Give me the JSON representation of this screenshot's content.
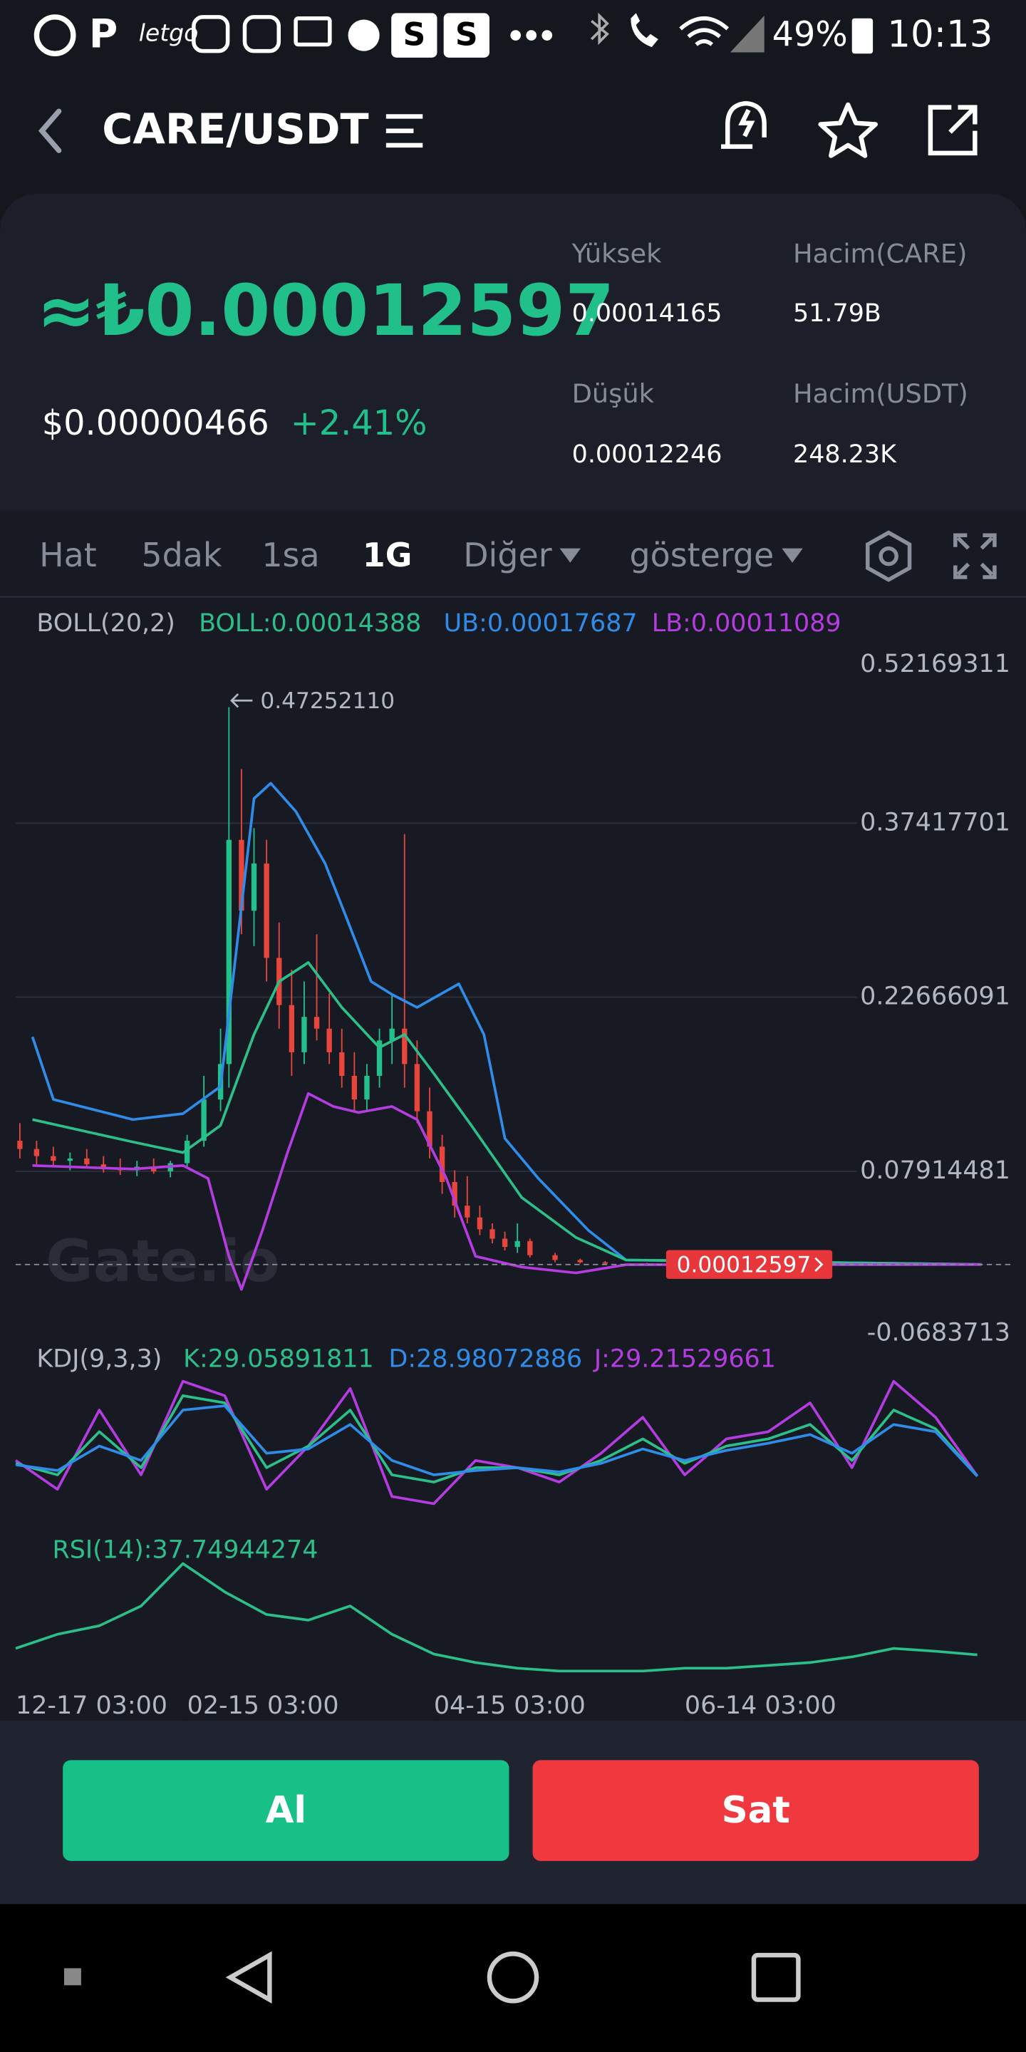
{
  "status_bar": {
    "app_icons": [
      "P",
      "letgo",
      "S",
      "S"
    ],
    "battery": "49%",
    "time": "10:13"
  },
  "header": {
    "pair": "CARE/USDT"
  },
  "ticker": {
    "price": "≈₺0.00012597",
    "usd_price": "$0.00000466",
    "change": "+2.41%",
    "stats": [
      {
        "label": "Yüksek",
        "value": "0.00014165"
      },
      {
        "label": "Hacim(CARE)",
        "value": "51.79B"
      },
      {
        "label": "Düşük",
        "value": "0.00012246"
      },
      {
        "label": "Hacim(USDT)",
        "value": "248.23K"
      }
    ]
  },
  "tabs": [
    "Hat",
    "5dak",
    "1sa",
    "1G",
    "Diğer",
    "gösterge"
  ],
  "active_tab": 3,
  "chart": {
    "watermark": "Gate.io",
    "boll_label": "BOLL(20,2)",
    "boll": "BOLL:0.00014388",
    "ub": "UB:0.00017687",
    "lb": "LB:0.00011089",
    "ylim": [
      -0.0683713,
      0.52169311
    ],
    "yticks": [
      0.52169311,
      0.37417701,
      0.22666091,
      0.07914481,
      -0.0683713
    ],
    "yticks_labels_note": null,
    "xlim": [
      19,
      250
    ],
    "xticks": [
      {
        "value": 0,
        "label": "12-17 03:00"
      },
      {
        "value": 60,
        "label": "02-15 03:00"
      },
      {
        "value": 119,
        "label": "04-15 03:00"
      },
      {
        "value": 179,
        "label": "06-14 03:00"
      }
    ],
    "max_point": {
      "x": 70,
      "value": 0.4725211,
      "label": "0.47252110"
    },
    "last_price": 0.00012597,
    "candles": {
      "up_color": "#22c08a",
      "down_color": "#e8453c",
      "x": [
        20,
        24,
        28,
        32,
        36,
        40,
        44,
        48,
        52,
        56,
        60,
        64,
        68,
        70,
        73,
        76,
        79,
        82,
        85,
        88,
        91,
        94,
        97,
        100,
        103,
        106,
        109,
        112,
        115,
        118,
        121,
        124,
        127,
        130,
        133,
        136,
        139,
        142,
        148,
        154,
        160,
        170
      ],
      "open": [
        0.105,
        0.098,
        0.092,
        0.088,
        0.09,
        0.085,
        0.082,
        0.08,
        0.083,
        0.079,
        0.086,
        0.105,
        0.14,
        0.17,
        0.36,
        0.3,
        0.34,
        0.26,
        0.22,
        0.18,
        0.21,
        0.2,
        0.18,
        0.16,
        0.14,
        0.16,
        0.19,
        0.2,
        0.17,
        0.13,
        0.1,
        0.07,
        0.05,
        0.04,
        0.03,
        0.022,
        0.015,
        0.02,
        0.008,
        0.004,
        0.002,
        0.001
      ],
      "high": [
        0.12,
        0.105,
        0.1,
        0.095,
        0.098,
        0.092,
        0.09,
        0.088,
        0.09,
        0.088,
        0.11,
        0.16,
        0.2,
        0.4725211,
        0.42,
        0.37,
        0.36,
        0.29,
        0.25,
        0.24,
        0.28,
        0.23,
        0.2,
        0.18,
        0.17,
        0.2,
        0.23,
        0.365,
        0.19,
        0.15,
        0.11,
        0.08,
        0.075,
        0.05,
        0.035,
        0.028,
        0.035,
        0.022,
        0.01,
        0.005,
        0.003,
        0.0015
      ],
      "low": [
        0.09,
        0.085,
        0.083,
        0.08,
        0.082,
        0.078,
        0.076,
        0.075,
        0.077,
        0.074,
        0.082,
        0.1,
        0.13,
        0.15,
        0.28,
        0.27,
        0.24,
        0.2,
        0.16,
        0.17,
        0.19,
        0.17,
        0.15,
        0.13,
        0.13,
        0.15,
        0.17,
        0.15,
        0.12,
        0.09,
        0.06,
        0.04,
        0.035,
        0.025,
        0.018,
        0.012,
        0.01,
        0.006,
        0.002,
        0.001,
        0.0003,
        0.0002
      ],
      "close": [
        0.098,
        0.092,
        0.088,
        0.09,
        0.085,
        0.082,
        0.08,
        0.083,
        0.079,
        0.086,
        0.105,
        0.14,
        0.17,
        0.36,
        0.3,
        0.34,
        0.26,
        0.22,
        0.18,
        0.21,
        0.2,
        0.18,
        0.16,
        0.14,
        0.16,
        0.19,
        0.2,
        0.17,
        0.13,
        0.1,
        0.07,
        0.05,
        0.04,
        0.03,
        0.022,
        0.015,
        0.02,
        0.008,
        0.004,
        0.002,
        0.001,
        0.0005
      ]
    },
    "bands": [
      {
        "color": "#2f8ce8",
        "x": [
          23,
          28,
          47,
          59,
          68,
          76,
          80,
          86,
          93,
          98,
          104,
          109,
          115,
          125,
          131,
          136,
          144,
          156,
          165,
          250
        ],
        "values": [
          0.193,
          0.14,
          0.123,
          0.128,
          0.151,
          0.395,
          0.408,
          0.384,
          0.34,
          0.295,
          0.24,
          0.229,
          0.218,
          0.238,
          0.195,
          0.107,
          0.073,
          0.029,
          0.004,
          0.00017687
        ]
      },
      {
        "color": "#2cbf8a",
        "x": [
          23,
          47,
          59,
          68,
          76,
          82,
          89,
          97,
          106,
          112,
          119,
          128,
          140,
          153,
          165,
          250
        ],
        "values": [
          0.123,
          0.104,
          0.095,
          0.118,
          0.195,
          0.24,
          0.256,
          0.218,
          0.184,
          0.195,
          0.162,
          0.118,
          0.057,
          0.023,
          0.004,
          0.00014388
        ]
      },
      {
        "color": "#b43ce0",
        "x": [
          23,
          47,
          59,
          65,
          70,
          73,
          78,
          84,
          89,
          95,
          101,
          109,
          115,
          122,
          129,
          140,
          153,
          165,
          250
        ],
        "values": [
          0.084,
          0.081,
          0.084,
          0.073,
          0.007,
          -0.021,
          0.029,
          0.095,
          0.145,
          0.134,
          0.129,
          0.134,
          0.123,
          0.073,
          0.007,
          -0.002,
          -0.007,
          0.0,
          0.00011089
        ]
      }
    ],
    "kdj": {
      "label": "KDJ(9,3,3)",
      "k_label": "K:29.05891811",
      "d_label": "D:28.98072886",
      "j_label": "J:29.21529661",
      "x": [
        19,
        29,
        39,
        49,
        59,
        69,
        79,
        89,
        99,
        109,
        119,
        129,
        139,
        149,
        159,
        169,
        179,
        189,
        199,
        209,
        219,
        229,
        239,
        249
      ],
      "series": [
        {
          "color": "#b43ce0",
          "values": [
            40,
            20,
            75,
            30,
            95,
            85,
            20,
            50,
            90,
            15,
            10,
            40,
            35,
            25,
            45,
            70,
            30,
            55,
            60,
            80,
            35,
            95,
            70,
            29.21529661
          ]
        },
        {
          "color": "#2cbf8a",
          "values": [
            38,
            30,
            60,
            35,
            85,
            80,
            35,
            50,
            75,
            30,
            25,
            35,
            35,
            30,
            40,
            55,
            38,
            50,
            55,
            65,
            40,
            75,
            62,
            29.05891811
          ]
        },
        {
          "color": "#2f8ce8",
          "values": [
            37,
            33,
            50,
            40,
            75,
            78,
            45,
            48,
            65,
            40,
            30,
            33,
            35,
            32,
            38,
            48,
            40,
            47,
            52,
            58,
            45,
            65,
            60,
            28.98072886
          ]
        }
      ]
    },
    "rsi": {
      "label": "RSI(14):37.74944274",
      "color": "#2cbf8a",
      "values": [
        40,
        45,
        48,
        55,
        70,
        60,
        52,
        50,
        55,
        45,
        38,
        35,
        33,
        32,
        32,
        32,
        33,
        33,
        34,
        35,
        37,
        40,
        39,
        37.74944274
      ]
    }
  },
  "buttons": {
    "buy": "Al",
    "sell": "Sat"
  }
}
